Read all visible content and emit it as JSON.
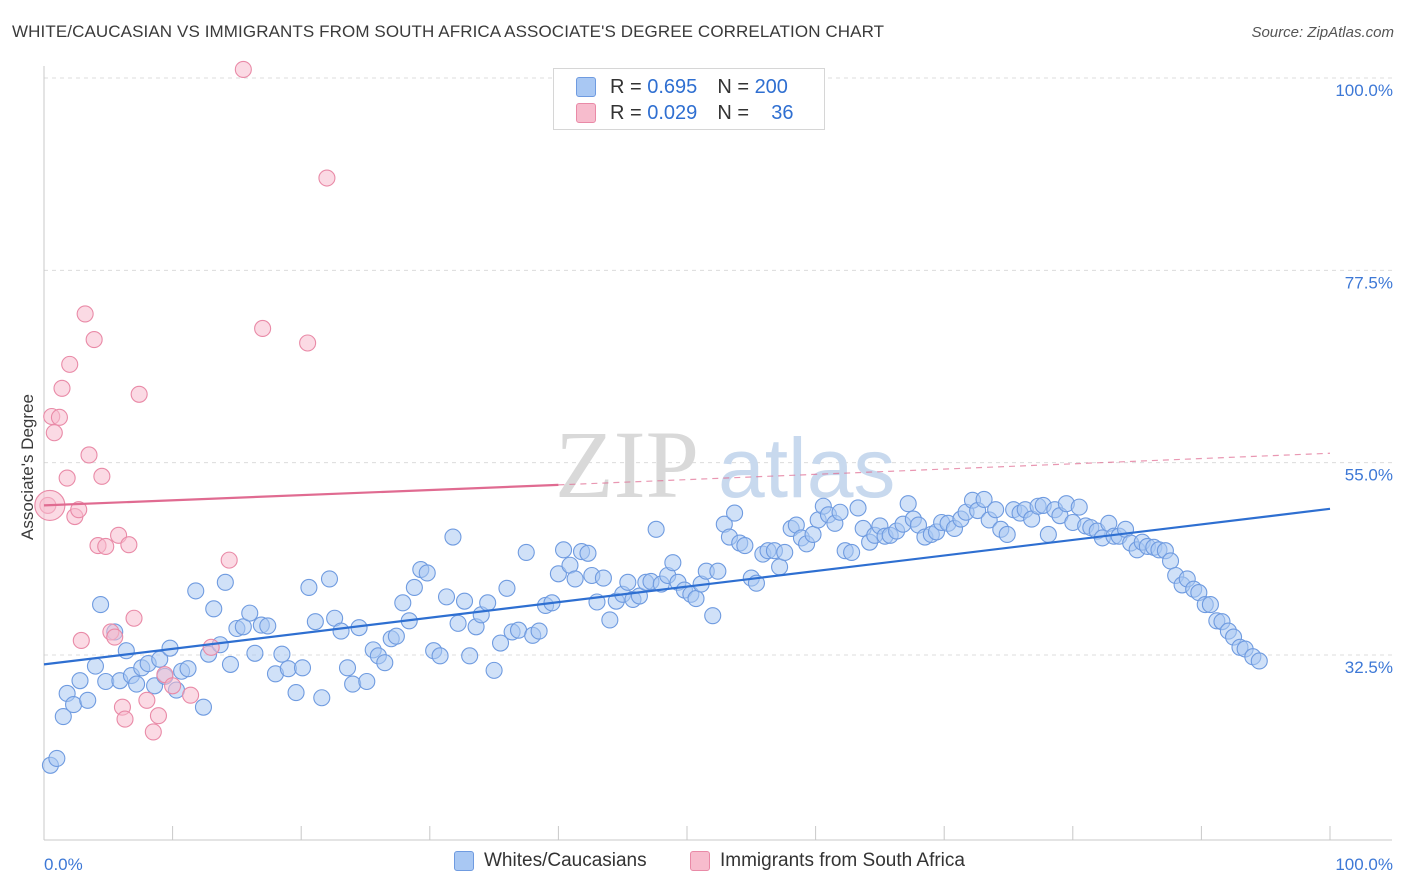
{
  "title": "WHITE/CAUCASIAN VS IMMIGRANTS FROM SOUTH AFRICA ASSOCIATE'S DEGREE CORRELATION CHART",
  "source": "Source: ZipAtlas.com",
  "watermark": {
    "zip": "ZIP",
    "atlas": "atlas"
  },
  "stats": [
    {
      "r_label": "R =",
      "r_value": "0.695",
      "n_label": "N =",
      "n_value": "200",
      "color": "#a9c8f3",
      "border": "#6f9be0"
    },
    {
      "r_label": "R =",
      "r_value": "0.029",
      "n_label": "N =",
      "n_value": "36",
      "color": "#f7bccd",
      "border": "#e98aa7"
    }
  ],
  "legend": [
    {
      "label": "Whites/Caucasians",
      "color": "#a9c8f3",
      "border": "#6f9be0"
    },
    {
      "label": "Immigrants from South Africa",
      "color": "#f7bccd",
      "border": "#e98aa7"
    }
  ],
  "chart_data": {
    "type": "scatter",
    "ylabel": "Associate's Degree",
    "xlabel": "",
    "x_tick_labels": [
      "0.0%",
      "100.0%"
    ],
    "y_tick_labels": [
      "32.5%",
      "55.0%",
      "77.5%",
      "100.0%"
    ],
    "y_ticks": [
      32.5,
      55.0,
      77.5,
      100.0
    ],
    "xlim": [
      0,
      100
    ],
    "ylim": [
      10,
      102
    ],
    "grid": "horizontal dashed",
    "series": [
      {
        "name": "Whites/Caucasians",
        "color": "#6f9be0",
        "fill": "#a9c8f3",
        "trend": {
          "x0": 0,
          "y0": 31.4,
          "x1": 100,
          "y1": 49.6,
          "color": "#2e6fd1"
        },
        "points": [
          [
            0.5,
            19.6
          ],
          [
            1.0,
            20.4
          ],
          [
            1.5,
            25.3
          ],
          [
            1.8,
            28.0
          ],
          [
            2.3,
            26.7
          ],
          [
            2.8,
            29.5
          ],
          [
            3.4,
            27.2
          ],
          [
            4.0,
            31.2
          ],
          [
            4.4,
            38.4
          ],
          [
            4.8,
            29.4
          ],
          [
            5.5,
            35.2
          ],
          [
            5.9,
            29.5
          ],
          [
            6.4,
            33.0
          ],
          [
            6.8,
            30.1
          ],
          [
            7.2,
            29.1
          ],
          [
            7.6,
            31.0
          ],
          [
            8.1,
            31.5
          ],
          [
            8.6,
            28.9
          ],
          [
            9.0,
            32.0
          ],
          [
            9.4,
            30.0
          ],
          [
            9.8,
            33.3
          ],
          [
            10.3,
            28.4
          ],
          [
            10.7,
            30.6
          ],
          [
            11.2,
            30.9
          ],
          [
            11.8,
            40.0
          ],
          [
            12.4,
            26.4
          ],
          [
            12.8,
            32.6
          ],
          [
            13.2,
            37.9
          ],
          [
            13.7,
            33.7
          ],
          [
            14.1,
            41.0
          ],
          [
            14.5,
            31.4
          ],
          [
            15.0,
            35.6
          ],
          [
            15.5,
            35.8
          ],
          [
            16.0,
            37.4
          ],
          [
            16.4,
            32.7
          ],
          [
            16.9,
            36.0
          ],
          [
            17.4,
            35.9
          ],
          [
            18.0,
            30.3
          ],
          [
            18.5,
            32.6
          ],
          [
            19.0,
            30.9
          ],
          [
            19.6,
            28.1
          ],
          [
            20.1,
            31.0
          ],
          [
            20.6,
            40.4
          ],
          [
            21.1,
            36.4
          ],
          [
            21.6,
            27.5
          ],
          [
            22.2,
            41.4
          ],
          [
            22.6,
            36.8
          ],
          [
            23.1,
            35.3
          ],
          [
            23.6,
            31.0
          ],
          [
            24.0,
            29.1
          ],
          [
            24.5,
            35.7
          ],
          [
            25.1,
            29.4
          ],
          [
            25.6,
            33.1
          ],
          [
            26.0,
            32.4
          ],
          [
            26.5,
            31.6
          ],
          [
            27.0,
            34.4
          ],
          [
            27.4,
            34.7
          ],
          [
            27.9,
            38.6
          ],
          [
            28.4,
            36.5
          ],
          [
            28.8,
            40.4
          ],
          [
            29.3,
            42.5
          ],
          [
            29.8,
            42.1
          ],
          [
            30.3,
            33.0
          ],
          [
            30.8,
            32.4
          ],
          [
            31.3,
            39.3
          ],
          [
            31.8,
            46.3
          ],
          [
            32.2,
            36.2
          ],
          [
            32.7,
            38.8
          ],
          [
            33.1,
            32.4
          ],
          [
            33.6,
            35.8
          ],
          [
            34.0,
            37.2
          ],
          [
            34.5,
            38.6
          ],
          [
            35.0,
            30.7
          ],
          [
            35.5,
            33.9
          ],
          [
            36.0,
            40.3
          ],
          [
            36.4,
            35.2
          ],
          [
            36.9,
            35.4
          ],
          [
            37.5,
            44.5
          ],
          [
            38.0,
            34.8
          ],
          [
            38.5,
            35.3
          ],
          [
            39.0,
            38.3
          ],
          [
            39.5,
            38.6
          ],
          [
            40.0,
            42.0
          ],
          [
            40.4,
            44.8
          ],
          [
            40.9,
            43.0
          ],
          [
            41.3,
            41.4
          ],
          [
            41.8,
            44.6
          ],
          [
            42.3,
            44.4
          ],
          [
            42.6,
            41.8
          ],
          [
            43.0,
            38.7
          ],
          [
            43.5,
            41.5
          ],
          [
            44.0,
            36.6
          ],
          [
            44.5,
            38.8
          ],
          [
            45.0,
            39.6
          ],
          [
            45.4,
            41.0
          ],
          [
            45.8,
            39.0
          ],
          [
            46.3,
            39.4
          ],
          [
            46.8,
            41.0
          ],
          [
            47.2,
            41.1
          ],
          [
            47.6,
            47.2
          ],
          [
            48.0,
            40.8
          ],
          [
            48.5,
            41.8
          ],
          [
            48.9,
            43.3
          ],
          [
            49.3,
            41.0
          ],
          [
            49.8,
            40.1
          ],
          [
            50.3,
            39.6
          ],
          [
            50.7,
            39.1
          ],
          [
            51.1,
            40.8
          ],
          [
            51.5,
            42.3
          ],
          [
            52.0,
            37.1
          ],
          [
            52.4,
            42.3
          ],
          [
            52.9,
            47.8
          ],
          [
            53.3,
            46.3
          ],
          [
            53.7,
            49.1
          ],
          [
            54.1,
            45.6
          ],
          [
            54.5,
            45.3
          ],
          [
            55.0,
            41.5
          ],
          [
            55.4,
            40.9
          ],
          [
            55.9,
            44.3
          ],
          [
            56.3,
            44.7
          ],
          [
            56.8,
            44.7
          ],
          [
            57.2,
            42.8
          ],
          [
            57.6,
            44.5
          ],
          [
            58.1,
            47.3
          ],
          [
            58.5,
            47.7
          ],
          [
            58.9,
            46.2
          ],
          [
            59.3,
            45.5
          ],
          [
            59.8,
            46.6
          ],
          [
            60.2,
            48.3
          ],
          [
            60.6,
            49.9
          ],
          [
            61.0,
            48.9
          ],
          [
            61.5,
            47.9
          ],
          [
            61.9,
            49.2
          ],
          [
            62.3,
            44.7
          ],
          [
            62.8,
            44.5
          ],
          [
            63.3,
            49.7
          ],
          [
            63.7,
            47.3
          ],
          [
            64.2,
            45.7
          ],
          [
            64.6,
            46.5
          ],
          [
            65.0,
            47.6
          ],
          [
            65.4,
            46.4
          ],
          [
            65.8,
            46.5
          ],
          [
            66.3,
            47.0
          ],
          [
            66.8,
            47.8
          ],
          [
            67.2,
            50.2
          ],
          [
            67.6,
            48.4
          ],
          [
            68.0,
            47.7
          ],
          [
            68.5,
            46.3
          ],
          [
            69.0,
            46.6
          ],
          [
            69.4,
            46.9
          ],
          [
            69.8,
            48.0
          ],
          [
            70.3,
            47.9
          ],
          [
            70.8,
            47.3
          ],
          [
            71.3,
            48.4
          ],
          [
            71.7,
            49.2
          ],
          [
            72.2,
            50.6
          ],
          [
            72.6,
            49.4
          ],
          [
            73.1,
            50.7
          ],
          [
            73.5,
            48.3
          ],
          [
            74.0,
            49.5
          ],
          [
            74.4,
            47.2
          ],
          [
            74.9,
            46.6
          ],
          [
            75.4,
            49.5
          ],
          [
            75.9,
            49.1
          ],
          [
            76.3,
            49.5
          ],
          [
            76.8,
            48.4
          ],
          [
            77.3,
            49.9
          ],
          [
            77.7,
            50.0
          ],
          [
            78.1,
            46.6
          ],
          [
            78.6,
            49.5
          ],
          [
            79.0,
            48.8
          ],
          [
            79.5,
            50.2
          ],
          [
            80.0,
            48.0
          ],
          [
            80.5,
            49.8
          ],
          [
            81.0,
            47.6
          ],
          [
            81.4,
            47.4
          ],
          [
            81.9,
            47.0
          ],
          [
            82.3,
            46.2
          ],
          [
            82.8,
            47.9
          ],
          [
            83.2,
            46.4
          ],
          [
            83.6,
            46.4
          ],
          [
            84.1,
            47.2
          ],
          [
            84.5,
            45.6
          ],
          [
            85.0,
            44.8
          ],
          [
            85.4,
            45.7
          ],
          [
            85.8,
            45.2
          ],
          [
            86.3,
            45.1
          ],
          [
            86.7,
            44.8
          ],
          [
            87.2,
            44.7
          ],
          [
            87.6,
            43.5
          ],
          [
            88.0,
            41.8
          ],
          [
            88.5,
            40.7
          ],
          [
            88.9,
            41.4
          ],
          [
            89.4,
            40.2
          ],
          [
            89.8,
            39.8
          ],
          [
            90.3,
            38.4
          ],
          [
            90.7,
            38.4
          ],
          [
            91.2,
            36.5
          ],
          [
            91.6,
            36.4
          ],
          [
            92.1,
            35.3
          ],
          [
            92.5,
            34.6
          ],
          [
            93.0,
            33.4
          ],
          [
            93.4,
            33.2
          ],
          [
            94.0,
            32.3
          ],
          [
            94.5,
            31.8
          ]
        ]
      },
      {
        "name": "Immigrants from South Africa",
        "color": "#e98aa7",
        "fill": "#f7bccd",
        "trend": {
          "x0": 0,
          "y0": 50.0,
          "x1": 40,
          "y1": 52.4,
          "dash_x1": 100,
          "dash_y1": 56.1,
          "color": "#e06b91"
        },
        "points": [
          [
            0.3,
            50.0
          ],
          [
            0.6,
            60.4
          ],
          [
            0.8,
            58.5
          ],
          [
            1.2,
            60.3
          ],
          [
            1.4,
            63.7
          ],
          [
            1.8,
            53.2
          ],
          [
            2.0,
            66.5
          ],
          [
            2.4,
            48.7
          ],
          [
            2.7,
            49.5
          ],
          [
            2.9,
            34.2
          ],
          [
            3.2,
            72.4
          ],
          [
            3.5,
            55.9
          ],
          [
            3.9,
            69.4
          ],
          [
            4.2,
            45.3
          ],
          [
            4.5,
            53.4
          ],
          [
            4.8,
            45.2
          ],
          [
            5.2,
            35.2
          ],
          [
            5.5,
            34.6
          ],
          [
            5.8,
            46.5
          ],
          [
            6.1,
            26.4
          ],
          [
            6.3,
            25.0
          ],
          [
            6.6,
            45.4
          ],
          [
            7.0,
            36.8
          ],
          [
            7.4,
            63.0
          ],
          [
            8.0,
            27.2
          ],
          [
            8.5,
            23.5
          ],
          [
            8.9,
            25.4
          ],
          [
            9.4,
            30.2
          ],
          [
            10.0,
            28.9
          ],
          [
            11.4,
            27.8
          ],
          [
            13.0,
            33.4
          ],
          [
            14.4,
            43.6
          ],
          [
            15.5,
            101.0
          ],
          [
            17.0,
            70.7
          ],
          [
            20.5,
            69.0
          ],
          [
            22.0,
            88.3
          ]
        ]
      }
    ]
  }
}
